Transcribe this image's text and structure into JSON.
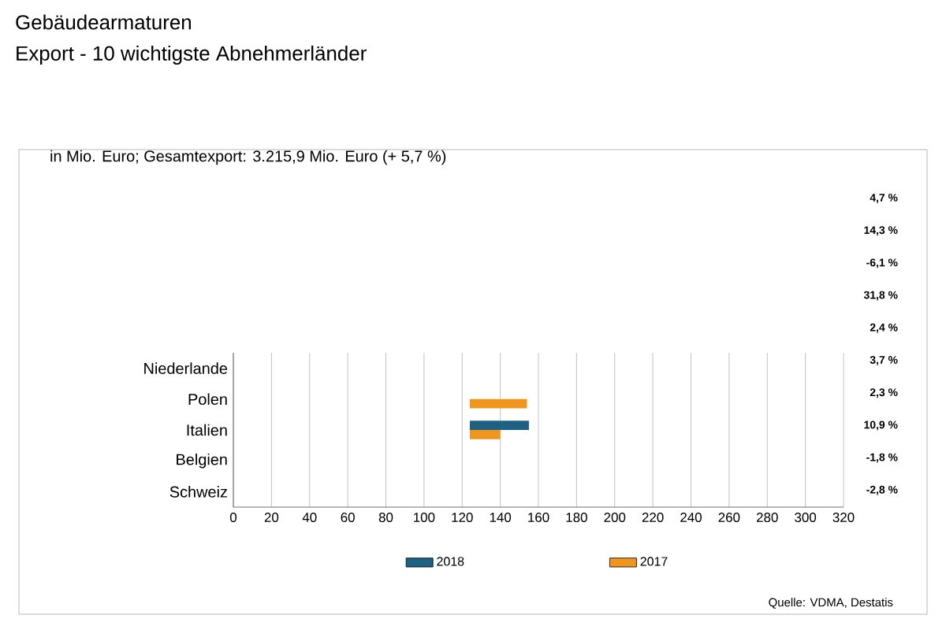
{
  "chart_data": {
    "type": "bar",
    "orientation": "horizontal",
    "title": "Gebäudearmaturen",
    "subtitle": "Export - 10 wichtigste Abnehmerländer",
    "categories": [
      "Niederlande",
      "Polen",
      "Italien",
      "Belgien",
      "Schweiz"
    ],
    "series": [
      {
        "name": "2018",
        "color": "#1e6183",
        "values": [
          null,
          null,
          31,
          null,
          null
        ],
        "base": [
          null,
          null,
          124,
          null,
          null
        ]
      },
      {
        "name": "2017",
        "color": "#f0961e",
        "values": [
          null,
          30,
          16,
          null,
          null
        ],
        "base": [
          null,
          124,
          124,
          null,
          null
        ]
      }
    ],
    "xlim": [
      0,
      320
    ],
    "xticks": [
      0,
      20,
      40,
      60,
      80,
      100,
      120,
      140,
      160,
      180,
      200,
      220,
      240,
      260,
      280,
      300,
      320
    ],
    "grid": "x",
    "legend": "bottom",
    "annotations": [
      "in Mio. Euro; Gesamtexport: 3.215,9 Mio. Euro (+ 5,7 %)",
      "4,7 %",
      "14,3 %",
      "-6,1 %",
      "31,8 %",
      "2,4 %",
      "3,7 %",
      "2,3 %",
      "10,9 %",
      "-1,8 %",
      "-2,8 %",
      "Quelle: VDMA, Destatis"
    ]
  }
}
